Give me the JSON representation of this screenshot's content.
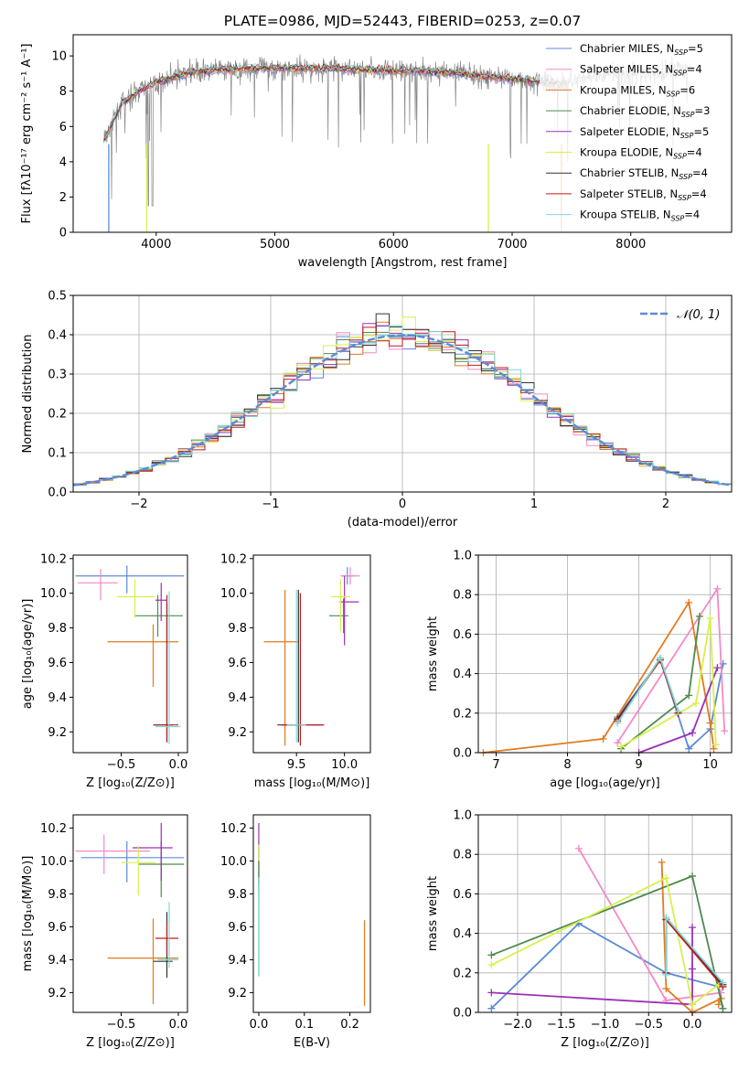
{
  "colors": {
    "chabrier_miles": "#5b8bd6",
    "salpeter_miles": "#f38ac7",
    "kroupa_miles": "#e27a1f",
    "chabrier_elodie": "#4e8a4e",
    "salpeter_elodie": "#9b30b8",
    "kroupa_elodie": "#d8f04a",
    "chabrier_stelib": "#333333",
    "salpeter_stelib": "#c21a1a",
    "kroupa_stelib": "#7fd8d8",
    "data": "#888888",
    "normal": "#5b8bd6"
  },
  "legend": [
    {
      "key": "chabrier_miles",
      "label": "Chabrier MILES, N",
      "sub": "SSP",
      "tail": "=5"
    },
    {
      "key": "salpeter_miles",
      "label": "Salpeter MILES, N",
      "sub": "SSP",
      "tail": "=4"
    },
    {
      "key": "kroupa_miles",
      "label": "Kroupa MILES, N",
      "sub": "SSP",
      "tail": "=6"
    },
    {
      "key": "chabrier_elodie",
      "label": "Chabrier ELODIE, N",
      "sub": "SSP",
      "tail": "=3"
    },
    {
      "key": "salpeter_elodie",
      "label": "Salpeter ELODIE, N",
      "sub": "SSP",
      "tail": "=5"
    },
    {
      "key": "kroupa_elodie",
      "label": "Kroupa ELODIE, N",
      "sub": "SSP",
      "tail": "=4"
    },
    {
      "key": "chabrier_stelib",
      "label": "Chabrier STELIB, N",
      "sub": "SSP",
      "tail": "=4"
    },
    {
      "key": "salpeter_stelib",
      "label": "Salpeter STELIB, N",
      "sub": "SSP",
      "tail": "=4"
    },
    {
      "key": "kroupa_stelib",
      "label": "Kroupa STELIB, N",
      "sub": "SSP",
      "tail": "=4"
    }
  ],
  "chart_data": [
    {
      "id": "spectrum",
      "type": "line",
      "title": "PLATE=0986, MJD=52443, FIBERID=0253, z=0.07",
      "xlabel": "wavelength [Angstrom, rest frame]",
      "ylabel": "Flux [fλ10⁻¹⁷ erg cm⁻² s⁻¹ A⁻¹]",
      "xlim": [
        3300,
        8850
      ],
      "ylim": [
        0,
        11.2
      ],
      "xticks": [
        4000,
        5000,
        6000,
        7000,
        8000
      ],
      "yticks": [
        0,
        2,
        4,
        6,
        8,
        10
      ],
      "data_range": [
        3560,
        8480
      ],
      "model_range": [
        3560,
        7420
      ],
      "continuum": [
        [
          3560,
          5.2
        ],
        [
          3700,
          7.2
        ],
        [
          3850,
          8.0
        ],
        [
          4000,
          8.5
        ],
        [
          4300,
          9.1
        ],
        [
          4800,
          9.3
        ],
        [
          5300,
          9.3
        ],
        [
          5800,
          9.2
        ],
        [
          6400,
          9.1
        ],
        [
          7000,
          8.7
        ],
        [
          7420,
          8.4
        ],
        [
          7600,
          8.8
        ],
        [
          8000,
          9.0
        ],
        [
          8480,
          9.3
        ]
      ],
      "legend_loc": "upper right"
    },
    {
      "id": "residual-histogram",
      "type": "bar",
      "xlabel": "(data-model)/error",
      "ylabel": "Normed distribution",
      "xlim": [
        -2.5,
        2.5
      ],
      "ylim": [
        0,
        0.5
      ],
      "xticks": [
        -2,
        -1,
        0,
        1,
        2
      ],
      "yticks": [
        0.0,
        0.1,
        0.2,
        0.3,
        0.4,
        0.5
      ],
      "bin_width": 0.1,
      "normal_label": "𝒩(0, 1)",
      "legend_loc": "upper right",
      "grid": true
    },
    {
      "id": "age-vs-Z",
      "type": "scatter",
      "xlabel": "Z [log₁₀(Z/Z⊙)]",
      "ylabel": "age  [log₁₀(age/yr)]",
      "xlim": [
        -0.92,
        0.08
      ],
      "ylim": [
        9.08,
        10.22
      ],
      "xticks": [
        -0.5,
        0.0
      ],
      "yticks": [
        9.2,
        9.4,
        9.6,
        9.8,
        10.0,
        10.2
      ],
      "points": [
        {
          "s": "chabrier_miles",
          "x": -0.45,
          "xerr": [
            0.45,
            0.5
          ],
          "y": 10.1,
          "yerr": [
            0.1,
            0.06
          ]
        },
        {
          "s": "salpeter_miles",
          "x": -0.68,
          "xerr": [
            0.2,
            0.15
          ],
          "y": 10.06,
          "yerr": [
            0.1,
            0.08
          ]
        },
        {
          "s": "kroupa_miles",
          "x": -0.22,
          "xerr": [
            0.4,
            0.22
          ],
          "y": 9.72,
          "yerr": [
            0.26,
            0.1
          ]
        },
        {
          "s": "chabrier_elodie",
          "x": -0.18,
          "xerr": [
            0.2,
            0.22
          ],
          "y": 9.87,
          "yerr": [
            0.12,
            0.12
          ]
        },
        {
          "s": "salpeter_elodie",
          "x": -0.15,
          "xerr": [
            0.05,
            0.05
          ],
          "y": 9.96,
          "yerr": [
            0.12,
            0.1
          ]
        },
        {
          "s": "kroupa_elodie",
          "x": -0.38,
          "xerr": [
            0.16,
            0.18
          ],
          "y": 9.98,
          "yerr": [
            0.12,
            0.1
          ]
        },
        {
          "s": "chabrier_stelib",
          "x": -0.1,
          "xerr": [
            0.12,
            0.05
          ],
          "y": 9.24,
          "yerr": [
            0.1,
            0.7
          ]
        },
        {
          "s": "salpeter_stelib",
          "x": -0.1,
          "xerr": [
            0.1,
            0.1
          ],
          "y": 9.24,
          "yerr": [
            0.1,
            0.75
          ]
        },
        {
          "s": "kroupa_stelib",
          "x": -0.08,
          "xerr": [
            0.12,
            0.1
          ],
          "y": 9.23,
          "yerr": [
            0.1,
            0.78
          ]
        }
      ]
    },
    {
      "id": "age-vs-mass",
      "type": "scatter",
      "xlabel": "mass [log₁₀(M/M⊙)]",
      "ylabel": "",
      "xlim": [
        9.05,
        10.27
      ],
      "ylim": [
        9.08,
        10.22
      ],
      "xticks": [
        9.5,
        10.0
      ],
      "yticks": [
        9.2,
        9.4,
        9.6,
        9.8,
        10.0,
        10.2
      ],
      "points": [
        {
          "s": "chabrier_miles",
          "x": 10.03,
          "xerr": [
            0.06,
            0.06
          ],
          "y": 10.1,
          "yerr": [
            0.05,
            0.05
          ]
        },
        {
          "s": "salpeter_miles",
          "x": 10.06,
          "xerr": [
            0.1,
            0.1
          ],
          "y": 10.1,
          "yerr": [
            0.05,
            0.05
          ]
        },
        {
          "s": "kroupa_miles",
          "x": 9.38,
          "xerr": [
            0.22,
            0.14
          ],
          "y": 9.72,
          "yerr": [
            0.6,
            0.3
          ]
        },
        {
          "s": "chabrier_elodie",
          "x": 9.99,
          "xerr": [
            0.15,
            0.05
          ],
          "y": 9.87,
          "yerr": [
            0.1,
            0.1
          ]
        },
        {
          "s": "salpeter_elodie",
          "x": 10.0,
          "xerr": [
            0.05,
            0.15
          ],
          "y": 9.95,
          "yerr": [
            0.25,
            0.15
          ]
        },
        {
          "s": "kroupa_elodie",
          "x": 9.96,
          "xerr": [
            0.1,
            0.1
          ],
          "y": 9.98,
          "yerr": [
            0.2,
            0.1
          ]
        },
        {
          "s": "chabrier_stelib",
          "x": 9.52,
          "xerr": [
            0.22,
            0.25
          ],
          "y": 9.24,
          "yerr": [
            0.1,
            0.78
          ]
        },
        {
          "s": "salpeter_stelib",
          "x": 9.54,
          "xerr": [
            0.2,
            0.25
          ],
          "y": 9.24,
          "yerr": [
            0.12,
            0.76
          ]
        },
        {
          "s": "kroupa_stelib",
          "x": 9.5,
          "xerr": [
            0.1,
            0.1
          ],
          "y": 9.24,
          "yerr": [
            0.1,
            0.78
          ]
        }
      ]
    },
    {
      "id": "weight-vs-age",
      "type": "line",
      "xlabel": "age  [log₁₀(age/yr)]",
      "ylabel": "mass weight",
      "xlim": [
        6.75,
        10.3
      ],
      "ylim": [
        0,
        1.0
      ],
      "xticks": [
        7,
        8,
        9,
        10
      ],
      "yticks": [
        0.0,
        0.2,
        0.4,
        0.6,
        0.8,
        1.0
      ],
      "grid": true,
      "series": [
        {
          "s": "chabrier_miles",
          "x": [
            8.7,
            9.3,
            9.7,
            10.0,
            10.18
          ],
          "y": [
            0.18,
            0.47,
            0.02,
            0.12,
            0.45
          ]
        },
        {
          "s": "salpeter_miles",
          "x": [
            8.7,
            10.1,
            10.2
          ],
          "y": [
            0.05,
            0.83,
            0.11
          ]
        },
        {
          "s": "kroupa_miles",
          "x": [
            6.82,
            8.5,
            9.7,
            10.0,
            10.05
          ],
          "y": [
            0.0,
            0.07,
            0.76,
            0.15,
            0.02
          ]
        },
        {
          "s": "chabrier_elodie",
          "x": [
            8.75,
            9.7,
            9.85
          ],
          "y": [
            0.02,
            0.29,
            0.69
          ]
        },
        {
          "s": "salpeter_elodie",
          "x": [
            9.0,
            9.75,
            10.1
          ],
          "y": [
            0.0,
            0.1,
            0.43
          ]
        },
        {
          "s": "kroupa_elodie",
          "x": [
            8.75,
            9.8,
            10.0,
            10.08
          ],
          "y": [
            0.03,
            0.25,
            0.68,
            0.04
          ]
        },
        {
          "s": "chabrier_stelib",
          "x": [
            8.7,
            9.3,
            9.55
          ],
          "y": [
            0.17,
            0.47,
            0.2
          ]
        },
        {
          "s": "salpeter_stelib",
          "x": [
            8.7,
            9.3,
            9.55
          ],
          "y": [
            0.16,
            0.47,
            0.2
          ]
        },
        {
          "s": "kroupa_stelib",
          "x": [
            8.7,
            9.3,
            9.55
          ],
          "y": [
            0.15,
            0.48,
            0.21
          ]
        }
      ]
    },
    {
      "id": "mass-vs-Z",
      "type": "scatter",
      "xlabel": "Z [log₁₀(Z/Z⊙)]",
      "ylabel": "mass [log₁₀(M/M⊙)]",
      "xlim": [
        -0.92,
        0.08
      ],
      "ylim": [
        9.08,
        10.28
      ],
      "xticks": [
        -0.5,
        0.0
      ],
      "yticks": [
        9.2,
        9.4,
        9.6,
        9.8,
        10.0,
        10.2
      ],
      "points": [
        {
          "s": "chabrier_miles",
          "x": -0.45,
          "xerr": [
            0.4,
            0.5
          ],
          "y": 10.02,
          "yerr": [
            0.15,
            0.1
          ]
        },
        {
          "s": "salpeter_miles",
          "x": -0.65,
          "xerr": [
            0.25,
            0.4
          ],
          "y": 10.06,
          "yerr": [
            0.14,
            0.1
          ]
        },
        {
          "s": "kroupa_miles",
          "x": -0.22,
          "xerr": [
            0.4,
            0.22
          ],
          "y": 9.41,
          "yerr": [
            0.28,
            0.24
          ]
        },
        {
          "s": "chabrier_elodie",
          "x": -0.15,
          "xerr": [
            0.2,
            0.2
          ],
          "y": 9.98,
          "yerr": [
            0.2,
            0.14
          ]
        },
        {
          "s": "salpeter_elodie",
          "x": -0.15,
          "xerr": [
            0.25,
            0.1
          ],
          "y": 10.08,
          "yerr": [
            0.2,
            0.15
          ]
        },
        {
          "s": "kroupa_elodie",
          "x": -0.35,
          "xerr": [
            0.15,
            0.15
          ],
          "y": 9.99,
          "yerr": [
            0.2,
            0.1
          ]
        },
        {
          "s": "chabrier_stelib",
          "x": -0.1,
          "xerr": [
            0.12,
            0.05
          ],
          "y": 9.39,
          "yerr": [
            0.1,
            0.3
          ]
        },
        {
          "s": "salpeter_stelib",
          "x": -0.1,
          "xerr": [
            0.1,
            0.1
          ],
          "y": 9.53,
          "yerr": [
            0.1,
            0.1
          ]
        },
        {
          "s": "kroupa_stelib",
          "x": -0.08,
          "xerr": [
            0.1,
            0.08
          ],
          "y": 9.4,
          "yerr": [
            0.05,
            0.35
          ]
        }
      ]
    },
    {
      "id": "mass-vs-ebv",
      "type": "scatter",
      "xlabel": "E(B-V)",
      "ylabel": "",
      "xlim": [
        -0.012,
        0.245
      ],
      "ylim": [
        9.08,
        10.28
      ],
      "xticks": [
        0.0,
        0.1,
        0.2
      ],
      "yticks": [
        9.2,
        9.4,
        9.6,
        9.8,
        10.0,
        10.2
      ],
      "points": [
        {
          "s": "chabrier_miles",
          "x": 0.0,
          "xerr": [
            0,
            0
          ],
          "y": 10.0,
          "yerr": [
            0.2,
            0.1
          ]
        },
        {
          "s": "salpeter_elodie",
          "x": 0.0,
          "xerr": [
            0,
            0
          ],
          "y": 10.05,
          "yerr": [
            0.2,
            0.18
          ]
        },
        {
          "s": "kroupa_elodie",
          "x": 0.0,
          "xerr": [
            0,
            0
          ],
          "y": 9.95,
          "yerr": [
            0.2,
            0.15
          ]
        },
        {
          "s": "chabrier_elodie",
          "x": 0.0,
          "xerr": [
            0,
            0
          ],
          "y": 9.8,
          "yerr": [
            0.5,
            0.2
          ]
        },
        {
          "s": "kroupa_stelib",
          "x": 0.0,
          "xerr": [
            0,
            0
          ],
          "y": 9.6,
          "yerr": [
            0.3,
            0.3
          ]
        },
        {
          "s": "kroupa_miles",
          "x": 0.232,
          "xerr": [
            0,
            0
          ],
          "y": 9.38,
          "yerr": [
            0.26,
            0.26
          ]
        }
      ]
    },
    {
      "id": "weight-vs-Z",
      "type": "line",
      "xlabel": "Z [log₁₀(Z/Z⊙)]",
      "ylabel": "mass weight",
      "xlim": [
        -2.45,
        0.45
      ],
      "ylim": [
        0,
        1.0
      ],
      "xticks": [
        -2.0,
        -1.5,
        -1.0,
        -0.5,
        0.0
      ],
      "yticks": [
        0.0,
        0.2,
        0.4,
        0.6,
        0.8,
        1.0
      ],
      "grid": true,
      "series": [
        {
          "s": "chabrier_miles",
          "x": [
            -2.3,
            -1.3,
            -0.3,
            0.3,
            0.35
          ],
          "y": [
            0.02,
            0.45,
            0.2,
            0.13,
            0.02
          ]
        },
        {
          "s": "salpeter_miles",
          "x": [
            -1.3,
            -0.3,
            0.33
          ],
          "y": [
            0.83,
            0.06,
            0.1
          ]
        },
        {
          "s": "kroupa_miles",
          "x": [
            -0.35,
            -0.3,
            0.0,
            0.33,
            0.3
          ],
          "y": [
            0.76,
            0.12,
            0.0,
            0.07,
            0.04
          ]
        },
        {
          "s": "chabrier_elodie",
          "x": [
            -2.3,
            0.0,
            0.35
          ],
          "y": [
            0.29,
            0.69,
            0.02
          ]
        },
        {
          "s": "salpeter_elodie",
          "x": [
            -2.3,
            0.0,
            0.0,
            0.0
          ],
          "y": [
            0.1,
            0.04,
            0.22,
            0.43
          ]
        },
        {
          "s": "kroupa_elodie",
          "x": [
            -2.3,
            -0.3,
            0.0,
            0.3
          ],
          "y": [
            0.24,
            0.68,
            0.04,
            0.14
          ]
        },
        {
          "s": "chabrier_stelib",
          "x": [
            -0.3,
            -0.3,
            0.35
          ],
          "y": [
            0.2,
            0.47,
            0.14
          ]
        },
        {
          "s": "salpeter_stelib",
          "x": [
            -0.3,
            -0.3,
            0.35
          ],
          "y": [
            0.2,
            0.47,
            0.13
          ]
        },
        {
          "s": "kroupa_stelib",
          "x": [
            -0.3,
            -0.3,
            0.35
          ],
          "y": [
            0.19,
            0.48,
            0.15
          ]
        }
      ]
    }
  ]
}
